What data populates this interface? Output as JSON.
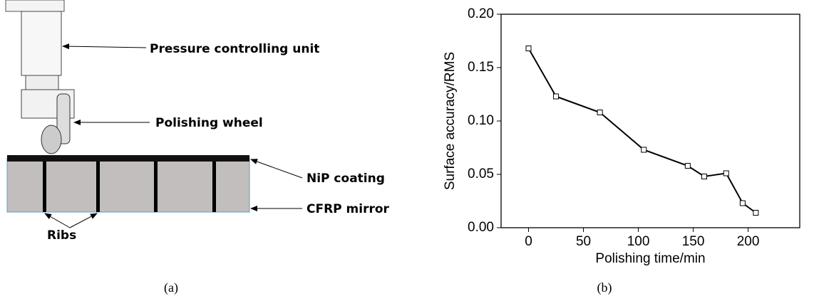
{
  "diagram": {
    "labels": [
      "Pressure controlling unit",
      "Polishing wheel",
      "NiP coating",
      "CFRP mirror",
      "Ribs"
    ]
  },
  "captions": [
    "(a)",
    "(b)"
  ],
  "chart_data": {
    "type": "line",
    "x_label": "Polishing time/min",
    "y_label": "Surface accuracy/RMS",
    "x": [
      0,
      25,
      65,
      105,
      145,
      160,
      180,
      195,
      207
    ],
    "values": [
      0.168,
      0.123,
      0.108,
      0.073,
      0.058,
      0.048,
      0.051,
      0.023,
      0.014
    ],
    "color": "#000000",
    "xlim": [
      -25,
      247
    ],
    "xticks": [
      0,
      50,
      100,
      150,
      200
    ],
    "ylim": [
      0,
      0.2
    ],
    "yticks": [
      {
        "value": 0,
        "label": "0.00"
      },
      {
        "value": 0.05,
        "label": "0.05"
      },
      {
        "value": 0.1,
        "label": "0.10"
      },
      {
        "value": 0.15,
        "label": "0.15"
      },
      {
        "value": 0.2,
        "label": "0.20"
      }
    ]
  }
}
